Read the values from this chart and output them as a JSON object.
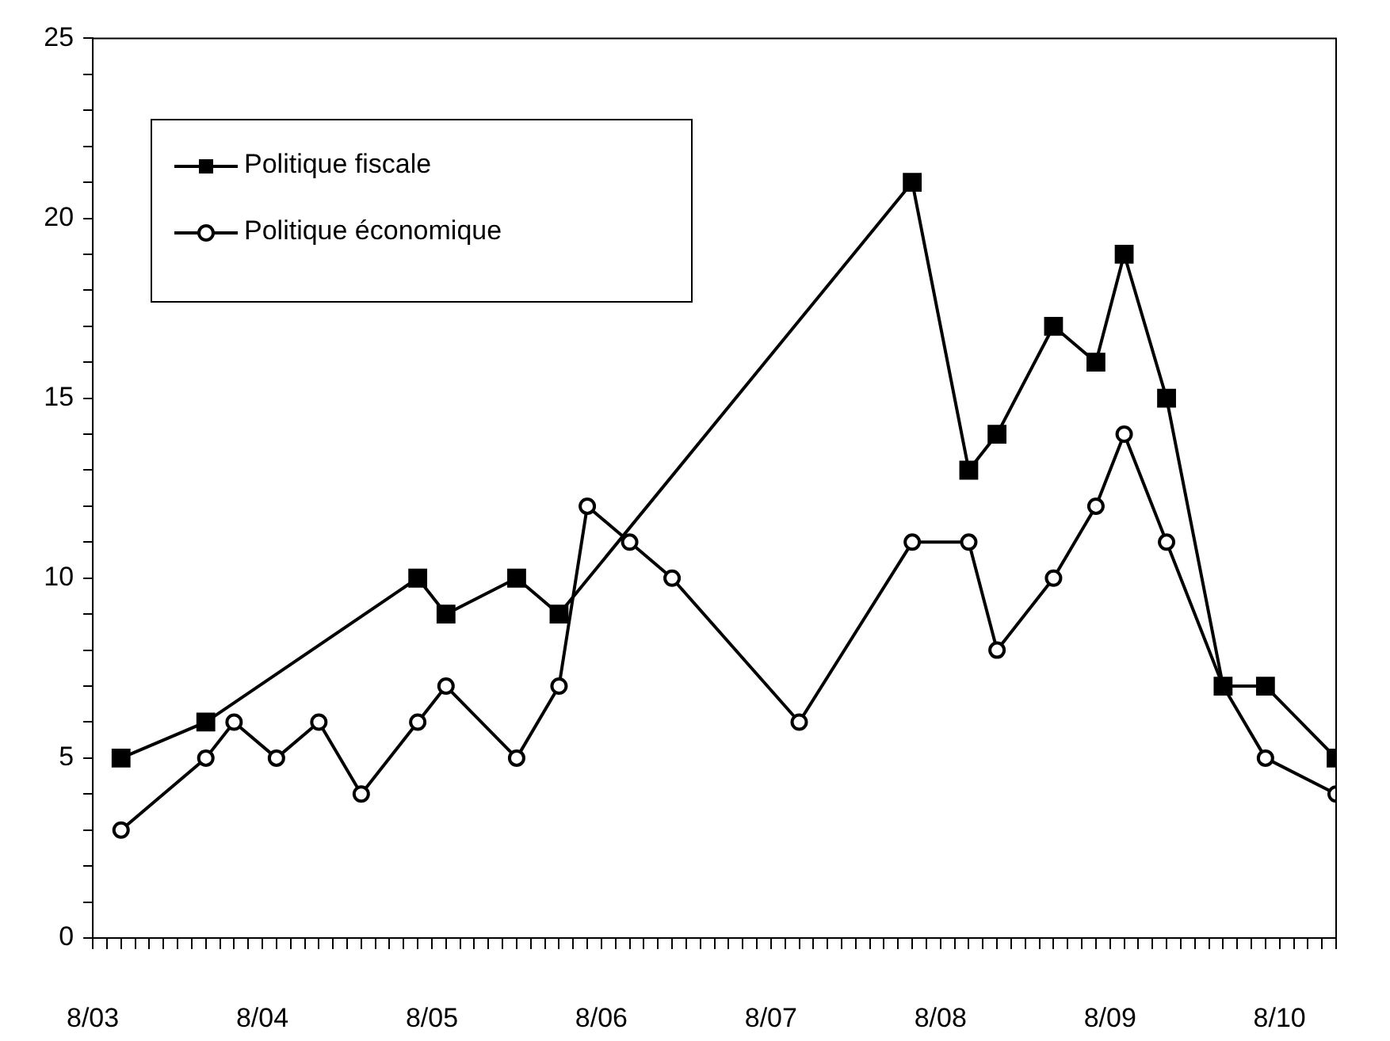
{
  "chart_data": {
    "type": "line",
    "legend": "top left",
    "grid": false,
    "xlim": [
      "2003-08",
      "2010-12"
    ],
    "xticks": [
      {
        "value": "2003-08",
        "label": "8/03"
      },
      {
        "value": "2003-09",
        "label": null
      },
      {
        "value": "2003-10",
        "label": null
      },
      {
        "value": "2003-11",
        "label": null
      },
      {
        "value": "2003-12",
        "label": null
      },
      {
        "value": "2004-01",
        "label": null
      },
      {
        "value": "2004-02",
        "label": null
      },
      {
        "value": "2004-03",
        "label": null
      },
      {
        "value": "2004-04",
        "label": null
      },
      {
        "value": "2004-05",
        "label": null
      },
      {
        "value": "2004-06",
        "label": null
      },
      {
        "value": "2004-07",
        "label": null
      },
      {
        "value": "2004-08",
        "label": "8/04"
      },
      {
        "value": "2004-09",
        "label": null
      },
      {
        "value": "2004-10",
        "label": null
      },
      {
        "value": "2004-11",
        "label": null
      },
      {
        "value": "2004-12",
        "label": null
      },
      {
        "value": "2005-01",
        "label": null
      },
      {
        "value": "2005-02",
        "label": null
      },
      {
        "value": "2005-03",
        "label": null
      },
      {
        "value": "2005-04",
        "label": null
      },
      {
        "value": "2005-05",
        "label": null
      },
      {
        "value": "2005-06",
        "label": null
      },
      {
        "value": "2005-07",
        "label": null
      },
      {
        "value": "2005-08",
        "label": "8/05"
      },
      {
        "value": "2005-09",
        "label": null
      },
      {
        "value": "2005-10",
        "label": null
      },
      {
        "value": "2005-11",
        "label": null
      },
      {
        "value": "2005-12",
        "label": null
      },
      {
        "value": "2006-01",
        "label": null
      },
      {
        "value": "2006-02",
        "label": null
      },
      {
        "value": "2006-03",
        "label": null
      },
      {
        "value": "2006-04",
        "label": null
      },
      {
        "value": "2006-05",
        "label": null
      },
      {
        "value": "2006-06",
        "label": null
      },
      {
        "value": "2006-07",
        "label": null
      },
      {
        "value": "2006-08",
        "label": "8/06"
      },
      {
        "value": "2006-09",
        "label": null
      },
      {
        "value": "2006-10",
        "label": null
      },
      {
        "value": "2006-11",
        "label": null
      },
      {
        "value": "2006-12",
        "label": null
      },
      {
        "value": "2007-01",
        "label": null
      },
      {
        "value": "2007-02",
        "label": null
      },
      {
        "value": "2007-03",
        "label": null
      },
      {
        "value": "2007-04",
        "label": null
      },
      {
        "value": "2007-05",
        "label": null
      },
      {
        "value": "2007-06",
        "label": null
      },
      {
        "value": "2007-07",
        "label": null
      },
      {
        "value": "2007-08",
        "label": "8/07"
      },
      {
        "value": "2007-09",
        "label": null
      },
      {
        "value": "2007-10",
        "label": null
      },
      {
        "value": "2007-11",
        "label": null
      },
      {
        "value": "2007-12",
        "label": null
      },
      {
        "value": "2008-01",
        "label": null
      },
      {
        "value": "2008-02",
        "label": null
      },
      {
        "value": "2008-03",
        "label": null
      },
      {
        "value": "2008-04",
        "label": null
      },
      {
        "value": "2008-05",
        "label": null
      },
      {
        "value": "2008-06",
        "label": null
      },
      {
        "value": "2008-07",
        "label": null
      },
      {
        "value": "2008-08",
        "label": "8/08"
      },
      {
        "value": "2008-09",
        "label": null
      },
      {
        "value": "2008-10",
        "label": null
      },
      {
        "value": "2008-11",
        "label": null
      },
      {
        "value": "2008-12",
        "label": null
      },
      {
        "value": "2009-01",
        "label": null
      },
      {
        "value": "2009-02",
        "label": null
      },
      {
        "value": "2009-03",
        "label": null
      },
      {
        "value": "2009-04",
        "label": null
      },
      {
        "value": "2009-05",
        "label": null
      },
      {
        "value": "2009-06",
        "label": null
      },
      {
        "value": "2009-07",
        "label": null
      },
      {
        "value": "2009-08",
        "label": "8/09"
      },
      {
        "value": "2009-09",
        "label": null
      },
      {
        "value": "2009-10",
        "label": null
      },
      {
        "value": "2009-11",
        "label": null
      },
      {
        "value": "2009-12",
        "label": null
      },
      {
        "value": "2010-01",
        "label": null
      },
      {
        "value": "2010-02",
        "label": null
      },
      {
        "value": "2010-03",
        "label": null
      },
      {
        "value": "2010-04",
        "label": null
      },
      {
        "value": "2010-05",
        "label": null
      },
      {
        "value": "2010-06",
        "label": null
      },
      {
        "value": "2010-07",
        "label": null
      },
      {
        "value": "2010-08",
        "label": "8/10"
      },
      {
        "value": "2010-09",
        "label": null
      },
      {
        "value": "2010-10",
        "label": null
      },
      {
        "value": "2010-11",
        "label": null
      },
      {
        "value": "2010-12",
        "label": null
      }
    ],
    "ylim": [
      0,
      25
    ],
    "yticks": [
      0,
      {
        "value": 1,
        "label": null
      },
      {
        "value": 2,
        "label": null
      },
      {
        "value": 3,
        "label": null
      },
      {
        "value": 4,
        "label": null
      },
      5,
      {
        "value": 6,
        "label": null
      },
      {
        "value": 7,
        "label": null
      },
      {
        "value": 8,
        "label": null
      },
      {
        "value": 9,
        "label": null
      },
      10,
      {
        "value": 11,
        "label": null
      },
      {
        "value": 12,
        "label": null
      },
      {
        "value": 13,
        "label": null
      },
      {
        "value": 14,
        "label": null
      },
      15,
      {
        "value": 16,
        "label": null
      },
      {
        "value": 17,
        "label": null
      },
      {
        "value": 18,
        "label": null
      },
      {
        "value": 19,
        "label": null
      },
      20,
      {
        "value": 21,
        "label": null
      },
      {
        "value": 22,
        "label": null
      },
      {
        "value": 23,
        "label": null
      },
      {
        "value": 24,
        "label": null
      },
      25
    ],
    "series": [
      {
        "name": "Politique fiscale",
        "color": "#000000",
        "marker": "square",
        "x": [
          "2003-10",
          "2004-04",
          "2005-07",
          "2005-09",
          "2006-02",
          "2006-05",
          "2008-06",
          "2008-10",
          "2008-12",
          "2009-04",
          "2009-07",
          "2009-09",
          "2009-12",
          "2010-04",
          "2010-07",
          "2010-12"
        ],
        "values": [
          5,
          6,
          10,
          9,
          10,
          9,
          21,
          13,
          14,
          17,
          16,
          19,
          15,
          7,
          7,
          5
        ]
      },
      {
        "name": "Politique économique",
        "color": "#000000",
        "marker": "circle",
        "x": [
          "2003-10",
          "2004-04",
          "2004-06",
          "2004-09",
          "2004-12",
          "2005-03",
          "2005-07",
          "2005-09",
          "2006-02",
          "2006-05",
          "2006-07",
          "2006-10",
          "2007-01",
          "2007-10",
          "2008-06",
          "2008-10",
          "2008-12",
          "2009-04",
          "2009-07",
          "2009-09",
          "2009-12",
          "2010-04",
          "2010-07",
          "2010-12"
        ],
        "values": [
          3,
          5,
          6,
          5,
          6,
          4,
          6,
          7,
          5,
          7,
          12,
          11,
          10,
          6,
          11,
          11,
          8,
          10,
          12,
          14,
          11,
          7,
          5,
          4
        ]
      }
    ]
  }
}
